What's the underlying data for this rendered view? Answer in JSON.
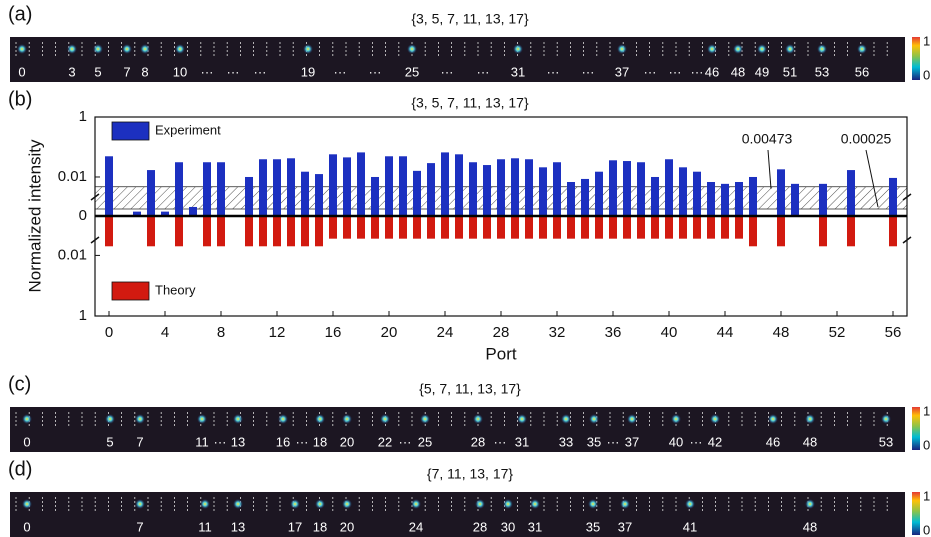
{
  "chart_data": {
    "type": "mirror-bar",
    "panel_label": "(b)",
    "title": "{3, 5, 7, 11, 13, 17}",
    "xlabel": "Port",
    "ylabel": "Normalized intensity",
    "x": [
      0,
      1,
      2,
      3,
      4,
      5,
      6,
      7,
      8,
      9,
      10,
      11,
      12,
      13,
      14,
      15,
      16,
      17,
      18,
      19,
      20,
      21,
      22,
      23,
      24,
      25,
      26,
      27,
      28,
      29,
      30,
      31,
      32,
      33,
      34,
      35,
      36,
      37,
      38,
      39,
      40,
      41,
      42,
      43,
      44,
      45,
      46,
      47,
      48,
      49,
      50,
      51,
      52,
      53,
      54,
      55,
      56
    ],
    "xlim": [
      -1,
      57
    ],
    "xticks": [
      0,
      4,
      8,
      12,
      16,
      20,
      24,
      28,
      32,
      36,
      40,
      44,
      48,
      52,
      56
    ],
    "log_scale": true,
    "ylim": [
      0.0005,
      1
    ],
    "yticks": [
      1,
      0.01,
      0
    ],
    "y2lim": [
      0.0005,
      1
    ],
    "y2ticks": [
      0.01,
      1
    ],
    "series": [
      {
        "name": "Experiment",
        "color": "#1c30c0",
        "legend": "upper left",
        "values": [
          0.049,
          null,
          0.0007,
          0.017,
          0.0007,
          0.031,
          0.001,
          0.031,
          0.031,
          null,
          0.01,
          0.039,
          0.039,
          0.042,
          0.015,
          0.0125,
          0.057,
          0.045,
          0.066,
          0.01,
          0.049,
          0.049,
          0.016,
          0.029,
          0.066,
          0.057,
          0.031,
          0.025,
          0.039,
          0.042,
          0.039,
          0.021,
          0.031,
          0.0068,
          0.0086,
          0.015,
          0.036,
          0.034,
          0.031,
          0.01,
          0.039,
          0.021,
          0.015,
          0.0068,
          0.0059,
          0.0068,
          0.01,
          null,
          0.018,
          0.0059,
          null,
          0.0059,
          null,
          0.017,
          null,
          null,
          0.0093
        ]
      },
      {
        "name": "Theory",
        "color": "#d21a10",
        "axis": "y2",
        "legend": "lower left",
        "values": [
          0.005,
          null,
          null,
          0.005,
          null,
          0.005,
          null,
          0.005,
          0.005,
          null,
          0.005,
          0.005,
          0.005,
          0.005,
          0.005,
          0.005,
          0.0028,
          0.0028,
          0.0028,
          0.0028,
          0.0028,
          0.0028,
          0.0028,
          0.0028,
          0.0028,
          0.0028,
          0.0028,
          0.0028,
          0.0028,
          0.0028,
          0.0028,
          0.0028,
          0.0028,
          0.0028,
          0.0028,
          0.0028,
          0.0028,
          0.0028,
          0.0028,
          0.0028,
          0.0028,
          0.0028,
          0.0028,
          0.0028,
          0.0028,
          0.0028,
          0.005,
          null,
          0.005,
          null,
          null,
          0.005,
          null,
          0.005,
          null,
          null,
          0.005
        ]
      }
    ],
    "band": [
      {
        "value": 0.00473,
        "label": "0.00473"
      },
      {
        "value": 0.00025,
        "label": "0.00025"
      }
    ]
  },
  "strips": [
    {
      "panel_label": "(a)",
      "title": "{3, 5, 7, 11, 13, 17}",
      "colorbar_labels": [
        "1",
        "0"
      ],
      "labels": [
        "0",
        "3",
        "5",
        "7",
        "8",
        "10",
        "···",
        "···",
        "···",
        "19",
        "···",
        "···",
        "25",
        "···",
        "···",
        "31",
        "···",
        "···",
        "37",
        "···",
        "···",
        "···",
        "46",
        "48",
        "49",
        "51",
        "53",
        "56"
      ]
    },
    {
      "panel_label": "(c)",
      "title": "{5, 7, 11, 13, 17}",
      "colorbar_labels": [
        "1",
        "0"
      ],
      "labels": [
        "0",
        "5",
        "7",
        "11",
        "···",
        "13",
        "16",
        "···",
        "18",
        "20",
        "22",
        "···",
        "25",
        "28",
        "···",
        "31",
        "33",
        "35",
        "···",
        "37",
        "40",
        "···",
        "42",
        "46",
        "48",
        "53"
      ]
    },
    {
      "panel_label": "(d)",
      "title": "{7, 11, 13, 17}",
      "colorbar_labels": [
        "1",
        "0"
      ],
      "labels": [
        "0",
        "7",
        "11",
        "13",
        "17",
        "18",
        "20",
        "24",
        "28",
        "30",
        "31",
        "35",
        "37",
        "41",
        "48"
      ]
    }
  ]
}
